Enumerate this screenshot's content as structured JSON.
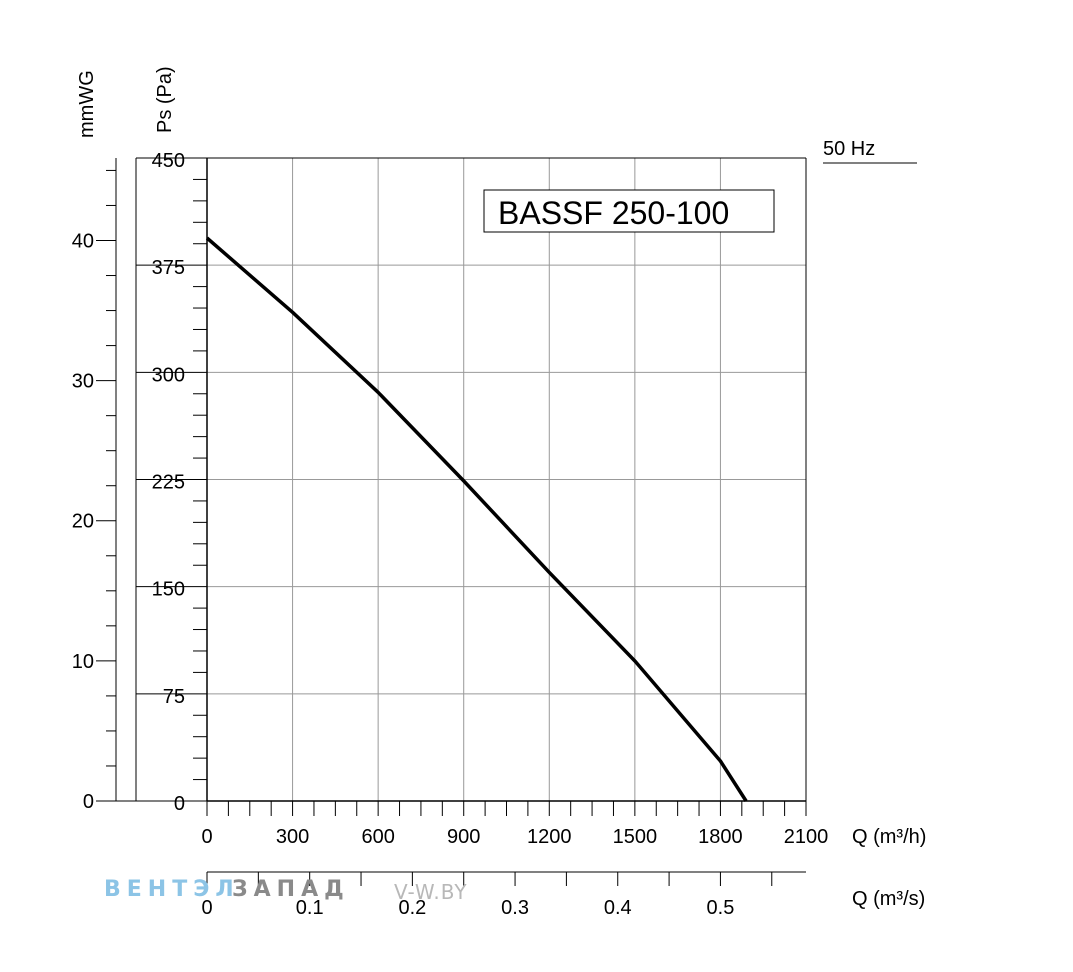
{
  "chart_data": {
    "type": "line",
    "title": "BASSF 250-100",
    "frequency_label": "50 Hz",
    "x": [
      0,
      300,
      600,
      900,
      1200,
      1500,
      1800,
      1890
    ],
    "y": [
      394,
      342,
      286,
      224,
      160,
      98,
      28,
      0
    ],
    "xlim": [
      0,
      2100
    ],
    "ylim": [
      0,
      450
    ],
    "x_ticks": [
      "0",
      "300",
      "600",
      "900",
      "1200",
      "1500",
      "1800",
      "2100"
    ],
    "y_ticks": [
      "0",
      "75",
      "150",
      "225",
      "300",
      "375",
      "450"
    ],
    "xlabel": "Q (m³/h)",
    "ylabel": "Ps (Pa)",
    "y2_label": "mmWG",
    "y2_ticks": [
      "0",
      "10",
      "20",
      "30",
      "40"
    ],
    "x2_label": "Q (m³/s)",
    "x2_ticks": [
      "0",
      "0.1",
      "0.2",
      "0.3",
      "0.4",
      "0.5"
    ],
    "grid": true
  },
  "watermark": {
    "brand_blue": "ВЕНТЭЛ",
    "brand_gray": "ЗАПАД",
    "site": "V-W.BY"
  },
  "colors": {
    "curve": "#000000",
    "grid": "#999999",
    "brand_blue": "#8cc4e6",
    "brand_gray": "#8a8a8a"
  }
}
